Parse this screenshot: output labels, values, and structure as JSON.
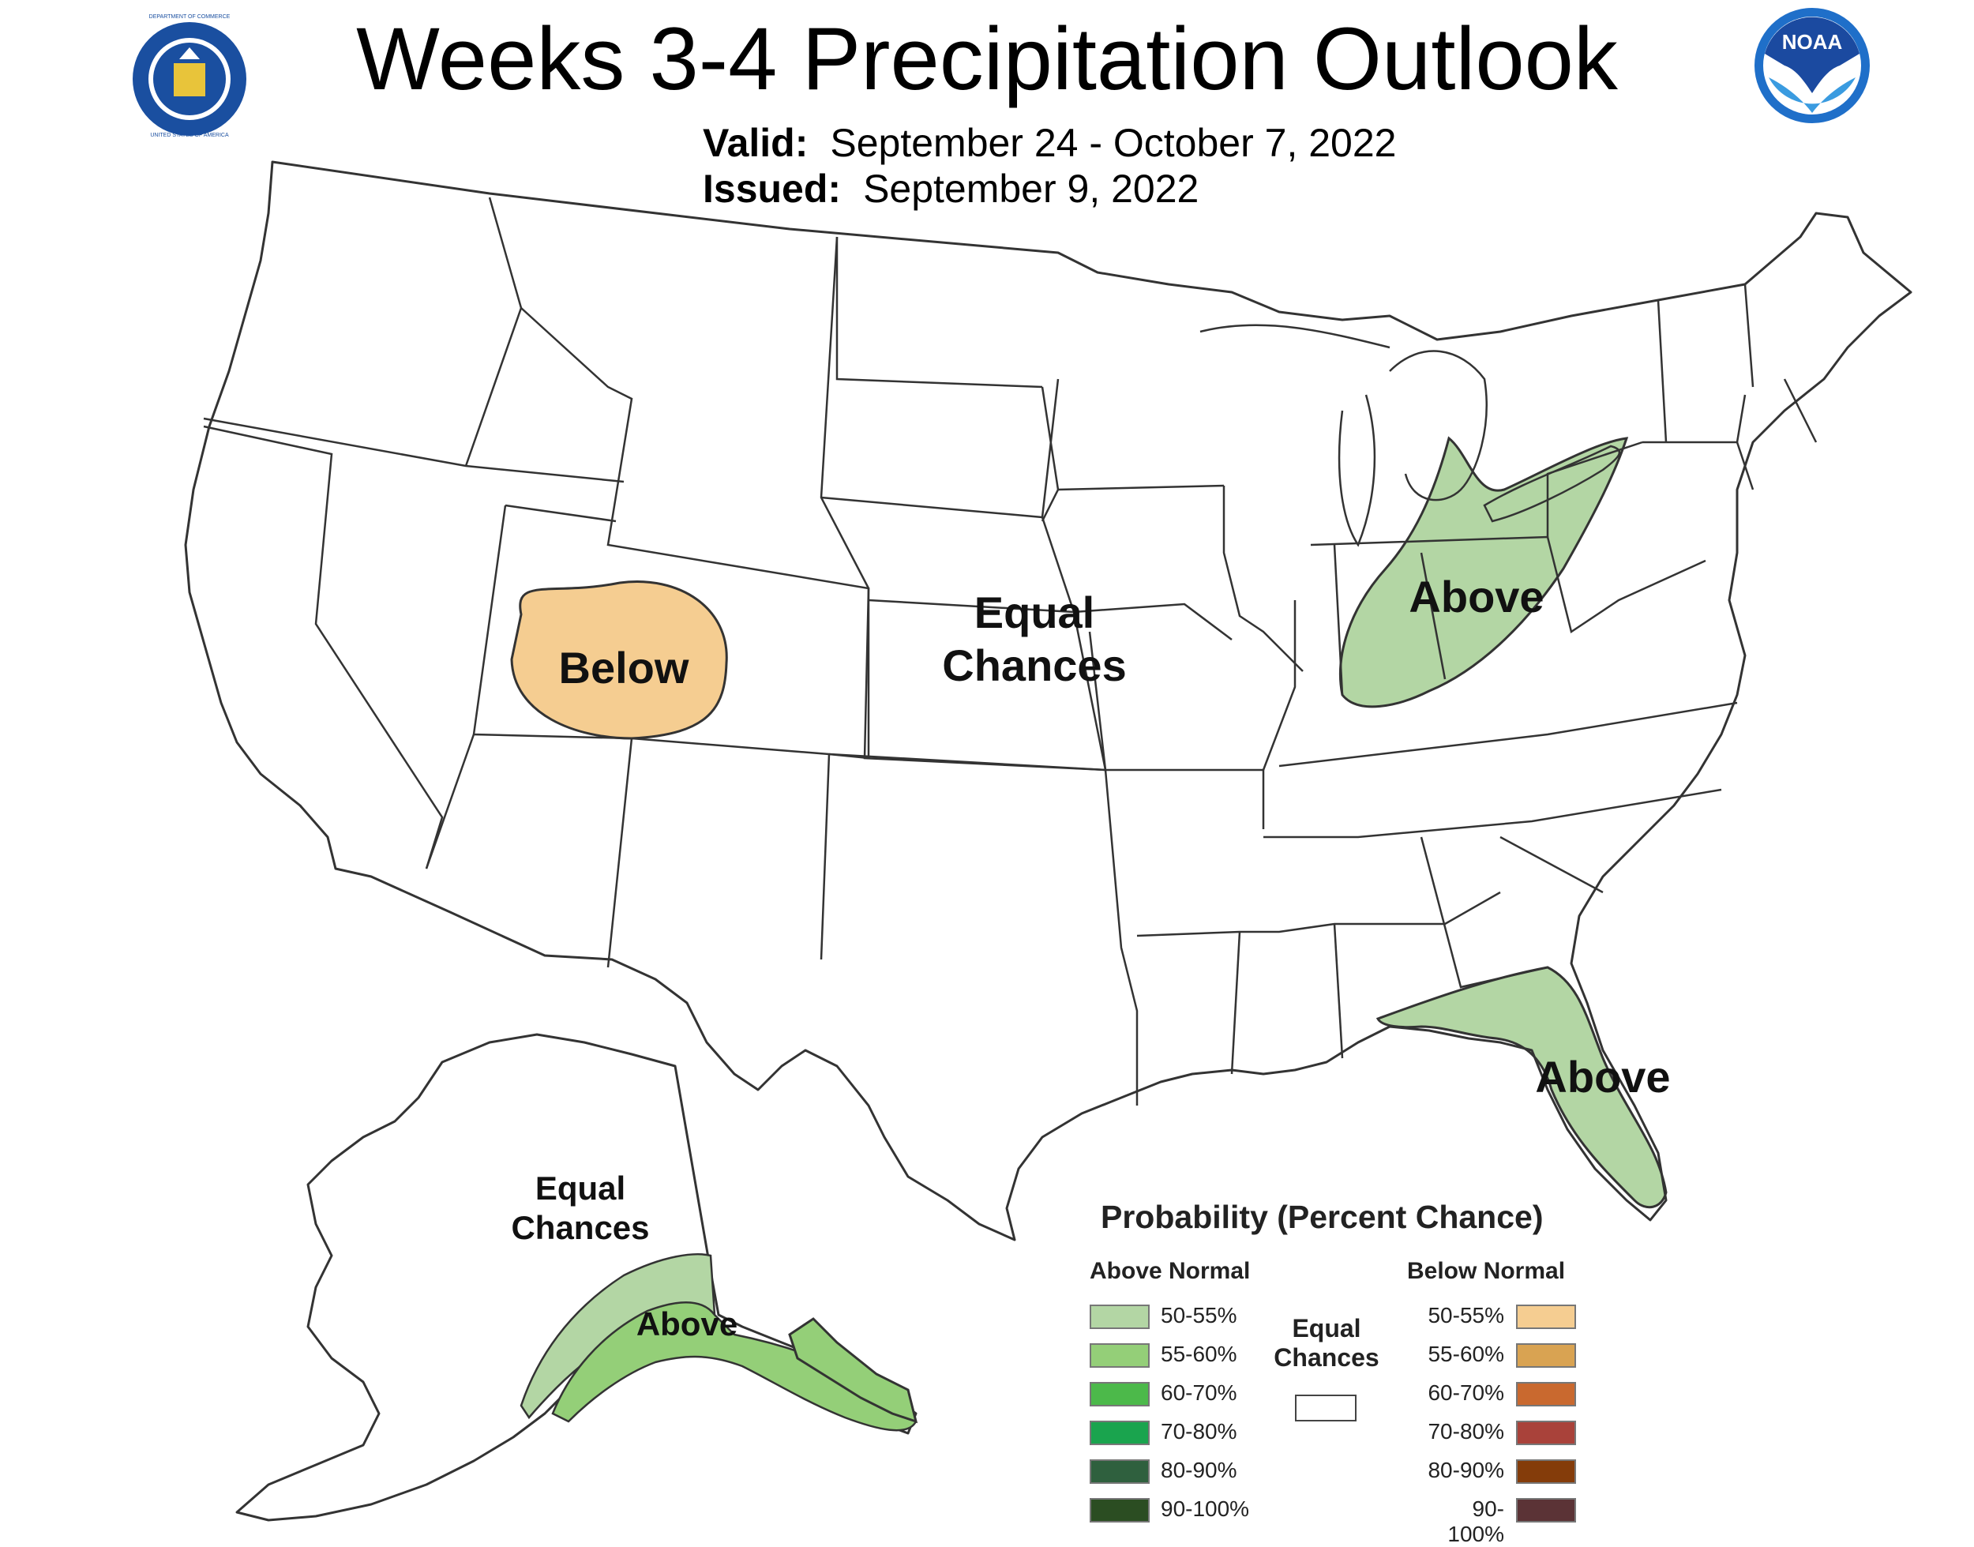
{
  "title": "Weeks 3-4 Precipitation Outlook",
  "valid": {
    "label": "Valid:",
    "value": "September 24 - October 7, 2022"
  },
  "issued": {
    "label": "Issued:",
    "value": "September 9, 2022"
  },
  "logos": {
    "left": {
      "icon": "doc-seal-icon",
      "text_top": "DEPARTMENT OF COMMERCE",
      "text_bottom": "UNITED STATES OF AMERICA"
    },
    "right": {
      "icon": "noaa-logo-icon",
      "text": "NOAA"
    }
  },
  "regions": {
    "conus_ec": {
      "line1": "Equal",
      "line2": "Chances"
    },
    "below_southwest": "Below",
    "above_ohio_valley": "Above",
    "above_florida": "Above",
    "alaska_ec": {
      "line1": "Equal",
      "line2": "Chances"
    },
    "alaska_above": "Above"
  },
  "legend": {
    "title": "Probability (Percent Chance)",
    "above_header": "Above Normal",
    "below_header": "Below Normal",
    "equal_chances": {
      "line1": "Equal",
      "line2": "Chances",
      "color": "#ffffff"
    },
    "above": [
      {
        "label": "50-55%",
        "color": "#b3d6a4"
      },
      {
        "label": "55-60%",
        "color": "#94cf78"
      },
      {
        "label": "60-70%",
        "color": "#4cb94a"
      },
      {
        "label": "70-80%",
        "color": "#1aa44e"
      },
      {
        "label": "80-90%",
        "color": "#2f603e"
      },
      {
        "label": "90-100%",
        "color": "#2b4d22"
      }
    ],
    "below": [
      {
        "label": "50-55%",
        "color": "#f5cd91"
      },
      {
        "label": "55-60%",
        "color": "#d9a352"
      },
      {
        "label": "60-70%",
        "color": "#c9692f"
      },
      {
        "label": "70-80%",
        "color": "#a9423a"
      },
      {
        "label": "80-90%",
        "color": "#843c0a"
      },
      {
        "label": "90-100%",
        "color": "#5b3336"
      }
    ]
  },
  "colors": {
    "state_border": "#333333",
    "alaska_land_above": "#94cf78",
    "alaska_land_light": "#b3d6a4"
  }
}
